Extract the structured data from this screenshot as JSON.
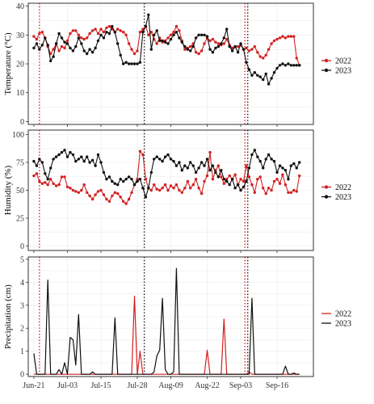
{
  "colors": {
    "s2022": "#d42020",
    "s2023": "#111111"
  },
  "x_axis": {
    "ticks": [
      "Jun-21",
      "Jul-03",
      "Jul-15",
      "Jul-28",
      "Aug-09",
      "Aug-22",
      "Sep-03",
      "Sep-16"
    ],
    "tick_days": [
      0,
      12,
      24,
      37,
      49,
      62,
      74,
      87
    ],
    "xlim": [
      -2,
      100
    ]
  },
  "vlines": {
    "s2022": [
      2,
      75.5
    ],
    "s2023": [
      39.5,
      76.5
    ]
  },
  "chart_data": [
    {
      "type": "line",
      "ylabel": "Temperature (°C)",
      "ylim": [
        -1,
        41
      ],
      "yticks": [
        0,
        10,
        20,
        30,
        40
      ],
      "markers": true,
      "legend": "right",
      "series": [
        {
          "name": "2022",
          "x": [
            0,
            1,
            2,
            3,
            4,
            5,
            6,
            7,
            8,
            9,
            10,
            11,
            12,
            13,
            14,
            15,
            16,
            17,
            18,
            19,
            20,
            21,
            22,
            23,
            24,
            25,
            26,
            27,
            28,
            29,
            30,
            31,
            32,
            33,
            34,
            35,
            36,
            37,
            38,
            39,
            40,
            41,
            42,
            43,
            44,
            45,
            46,
            47,
            48,
            49,
            50,
            51,
            52,
            53,
            54,
            55,
            56,
            57,
            58,
            59,
            60,
            61,
            62,
            63,
            64,
            65,
            66,
            67,
            68,
            69,
            70,
            71,
            72,
            73,
            74,
            75,
            76,
            77,
            78,
            79,
            80,
            81,
            82,
            83,
            84,
            85,
            86,
            87,
            88,
            89,
            90,
            91,
            92,
            93,
            94,
            95
          ],
          "values": [
            29.5,
            28.5,
            30.5,
            31,
            29,
            26,
            23.5,
            25,
            27,
            24.5,
            26,
            25.5,
            28,
            30.5,
            31.5,
            31.5,
            30,
            29,
            28.5,
            29,
            30.5,
            31.5,
            32,
            30.5,
            32,
            31,
            32.5,
            33,
            32,
            31,
            32,
            31.5,
            31,
            30,
            27,
            25,
            23.5,
            24.5,
            31,
            32,
            33,
            30,
            31,
            28.5,
            27,
            29,
            27.5,
            28,
            29,
            30,
            31,
            33,
            31.5,
            28,
            25,
            25.5,
            26,
            27,
            24,
            23.5,
            24.5,
            27,
            29,
            28,
            28.5,
            27.5,
            27,
            26.5,
            27,
            28.5,
            26.5,
            25.5,
            26,
            26,
            26.5,
            25,
            25.5,
            24.5,
            25,
            26,
            24,
            22.5,
            22,
            23,
            25,
            27,
            28,
            28.5,
            29,
            29.5,
            29,
            29.5,
            29.5,
            29.5,
            22,
            19.5
          ]
        },
        {
          "name": "2023",
          "x": [
            0,
            1,
            2,
            3,
            4,
            5,
            6,
            7,
            8,
            9,
            10,
            11,
            12,
            13,
            14,
            15,
            16,
            17,
            18,
            19,
            20,
            21,
            22,
            23,
            24,
            25,
            26,
            27,
            28,
            29,
            30,
            31,
            32,
            33,
            34,
            35,
            36,
            37,
            38,
            39,
            40,
            41,
            42,
            43,
            44,
            45,
            46,
            47,
            48,
            49,
            50,
            51,
            52,
            53,
            54,
            55,
            56,
            57,
            58,
            59,
            60,
            61,
            62,
            63,
            64,
            65,
            66,
            67,
            68,
            69,
            70,
            71,
            72,
            73,
            74,
            75,
            76,
            77,
            78,
            79,
            80,
            81,
            82,
            83,
            84,
            85,
            86,
            87,
            88,
            89,
            90,
            91,
            92,
            93,
            94,
            95
          ],
          "values": [
            25.5,
            27,
            25,
            26.5,
            29,
            26.5,
            21,
            22.5,
            27,
            30.5,
            29,
            27.5,
            27,
            25.5,
            24.5,
            26,
            29,
            27,
            24.5,
            23.5,
            25,
            24,
            25.5,
            28,
            30,
            29,
            31,
            30.5,
            33,
            31,
            27,
            23,
            20,
            20.5,
            20,
            20,
            20,
            20,
            20.5,
            31,
            33,
            37,
            25,
            30,
            31.5,
            28,
            28,
            27.5,
            27,
            28.5,
            30,
            31,
            29,
            27.5,
            26,
            25,
            24.5,
            26,
            29,
            30,
            30,
            30,
            29.5,
            25,
            24,
            25.5,
            26,
            27,
            29,
            32,
            26,
            24.5,
            26,
            24,
            27,
            25,
            20.5,
            18,
            16,
            17,
            16,
            15.5,
            14.5,
            16.5,
            13,
            15,
            17,
            18.5,
            19.5,
            20,
            19.5,
            20,
            19.5,
            19.5,
            19.5,
            19.5
          ]
        }
      ]
    },
    {
      "type": "line",
      "ylabel": "Humidity (%)",
      "ylim": [
        -4,
        104
      ],
      "yticks": [
        0,
        25,
        50,
        75,
        100
      ],
      "markers": true,
      "legend": "right",
      "series": [
        {
          "name": "2022",
          "x": [
            0,
            1,
            2,
            3,
            4,
            5,
            6,
            7,
            8,
            9,
            10,
            11,
            12,
            13,
            14,
            15,
            16,
            17,
            18,
            19,
            20,
            21,
            22,
            23,
            24,
            25,
            26,
            27,
            28,
            29,
            30,
            31,
            32,
            33,
            34,
            35,
            36,
            37,
            38,
            39,
            40,
            41,
            42,
            43,
            44,
            45,
            46,
            47,
            48,
            49,
            50,
            51,
            52,
            53,
            54,
            55,
            56,
            57,
            58,
            59,
            60,
            61,
            62,
            63,
            64,
            65,
            66,
            67,
            68,
            69,
            70,
            71,
            72,
            73,
            74,
            75,
            76,
            77,
            78,
            79,
            80,
            81,
            82,
            83,
            84,
            85,
            86,
            87,
            88,
            89,
            90,
            91,
            92,
            93,
            94,
            95
          ],
          "values": [
            63,
            65,
            58,
            56,
            57,
            55,
            60,
            56,
            54,
            55,
            62,
            62,
            53,
            52,
            50,
            49,
            48,
            50,
            55,
            48,
            45,
            42,
            46,
            49,
            50,
            46,
            42,
            40,
            45,
            48,
            47,
            44,
            40,
            38,
            42,
            48,
            55,
            60,
            85,
            82,
            60,
            52,
            50,
            55,
            51,
            50,
            52,
            55,
            50,
            54,
            52,
            55,
            50,
            48,
            52,
            58,
            52,
            55,
            60,
            52,
            47,
            58,
            63,
            84,
            60,
            68,
            72,
            62,
            56,
            60,
            63,
            60,
            64,
            55,
            60,
            58,
            72,
            62,
            55,
            48,
            60,
            62,
            52,
            47,
            52,
            50,
            58,
            60,
            56,
            64,
            55,
            48,
            48,
            50,
            49,
            63
          ]
        },
        {
          "name": "2023",
          "x": [
            0,
            1,
            2,
            3,
            4,
            5,
            6,
            7,
            8,
            9,
            10,
            11,
            12,
            13,
            14,
            15,
            16,
            17,
            18,
            19,
            20,
            21,
            22,
            23,
            24,
            25,
            26,
            27,
            28,
            29,
            30,
            31,
            32,
            33,
            34,
            35,
            36,
            37,
            38,
            39,
            40,
            41,
            42,
            43,
            44,
            45,
            46,
            47,
            48,
            49,
            50,
            51,
            52,
            53,
            54,
            55,
            56,
            57,
            58,
            59,
            60,
            61,
            62,
            63,
            64,
            65,
            66,
            67,
            68,
            69,
            70,
            71,
            72,
            73,
            74,
            75,
            76,
            77,
            78,
            79,
            80,
            81,
            82,
            83,
            84,
            85,
            86,
            87,
            88,
            89,
            90,
            91,
            92,
            93,
            94,
            95
          ],
          "values": [
            76,
            72,
            78,
            75,
            65,
            60,
            70,
            78,
            80,
            82,
            84,
            86,
            80,
            84,
            82,
            76,
            78,
            80,
            76,
            80,
            75,
            77,
            72,
            82,
            75,
            66,
            60,
            62,
            58,
            56,
            55,
            60,
            58,
            60,
            62,
            60,
            55,
            58,
            60,
            52,
            44,
            52,
            66,
            78,
            80,
            78,
            76,
            80,
            82,
            78,
            76,
            72,
            75,
            68,
            72,
            70,
            75,
            72,
            66,
            70,
            75,
            72,
            78,
            68,
            72,
            66,
            62,
            68,
            60,
            58,
            55,
            60,
            52,
            55,
            50,
            53,
            58,
            70,
            82,
            86,
            80,
            76,
            70,
            78,
            82,
            78,
            76,
            66,
            72,
            70,
            68,
            60,
            72,
            74,
            70,
            75
          ]
        }
      ]
    },
    {
      "type": "line",
      "ylabel": "Precipitation (cm)",
      "ylim": [
        -0.1,
        5.1
      ],
      "yticks": [
        0,
        1,
        2,
        3,
        4,
        5
      ],
      "markers": false,
      "legend": "right",
      "series": [
        {
          "name": "2022",
          "x": [
            0,
            35,
            36,
            37,
            38,
            39,
            61,
            62,
            63,
            67,
            68,
            69,
            76,
            77,
            78,
            79,
            95
          ],
          "values": [
            0,
            0,
            3.4,
            0,
            1.0,
            0,
            0,
            1.05,
            0,
            0,
            2.4,
            0,
            0,
            0.1,
            0,
            0,
            0
          ]
        },
        {
          "name": "2023",
          "x": [
            0,
            1,
            2,
            3,
            4,
            5,
            6,
            7,
            8,
            9,
            10,
            11,
            12,
            13,
            14,
            15,
            16,
            17,
            18,
            19,
            20,
            21,
            22,
            23,
            24,
            25,
            26,
            27,
            28,
            29,
            30,
            31,
            32,
            33,
            34,
            35,
            36,
            37,
            38,
            39,
            40,
            41,
            42,
            43,
            44,
            45,
            46,
            47,
            48,
            49,
            50,
            51,
            52,
            53,
            54,
            55,
            56,
            57,
            58,
            59,
            60,
            61,
            62,
            63,
            64,
            65,
            66,
            67,
            68,
            69,
            70,
            71,
            72,
            73,
            74,
            75,
            76,
            77,
            78,
            79,
            80,
            81,
            82,
            83,
            84,
            85,
            86,
            87,
            88,
            89,
            90,
            91,
            92,
            93,
            94,
            95
          ],
          "values": [
            0.9,
            0,
            0,
            0,
            0,
            4.1,
            0,
            0,
            0,
            0.2,
            0,
            0.5,
            0,
            1.6,
            1.5,
            0.4,
            2.6,
            0,
            0,
            0,
            0,
            0.1,
            0,
            0,
            0,
            0,
            0,
            0,
            0,
            2.45,
            0,
            0,
            0,
            0,
            0,
            0,
            0,
            0,
            0,
            0,
            0,
            0,
            0,
            0.1,
            0.8,
            1.05,
            3.3,
            0.2,
            0,
            0,
            0.1,
            4.6,
            0,
            0,
            0,
            0,
            0,
            0,
            0,
            0,
            0,
            0,
            0,
            0,
            0,
            0,
            0,
            0,
            0,
            0,
            0,
            0,
            0,
            0,
            0,
            0,
            0,
            0,
            3.3,
            0,
            0,
            0,
            0,
            0,
            0,
            0,
            0,
            0,
            0,
            0,
            0.35,
            0,
            0,
            0.05,
            0,
            0
          ]
        }
      ]
    }
  ]
}
